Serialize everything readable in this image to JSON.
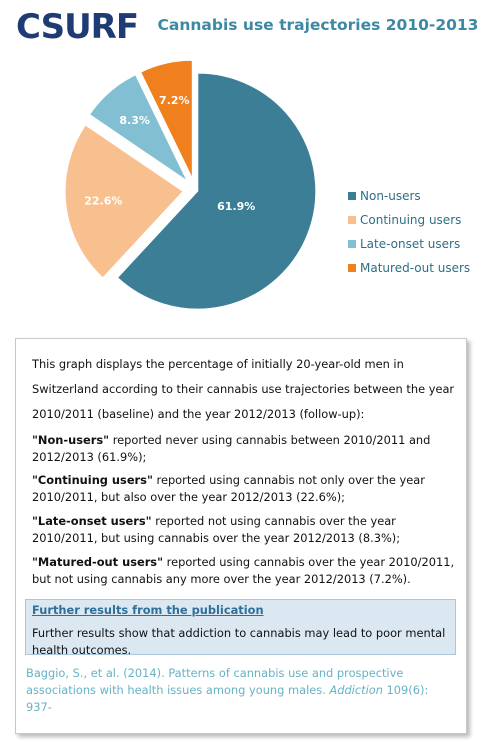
{
  "header": {
    "logo": "CSURF"
  },
  "chart_data": {
    "type": "pie",
    "title": "Cannabis use trajectories 2010-2013",
    "categories": [
      "Non-users",
      "Continuing users",
      "Late-onset users",
      "Matured-out users"
    ],
    "values": [
      61.9,
      22.6,
      8.3,
      7.2
    ],
    "value_labels": [
      "61.9%",
      "22.6%",
      "8.3%",
      "7.2%"
    ],
    "colors": [
      "#3b7e95",
      "#f9c08f",
      "#83bfd3",
      "#f0801e"
    ],
    "legend": "right"
  },
  "text": {
    "intro": "This graph displays the percentage of  initially 20-year-old men in Switzerland according to their cannabis use trajectories between the year 2010/2011 (baseline) and the year 2012/2013 (follow-up):",
    "items": [
      {
        "term": "\"Non-users\"",
        "description": " reported never using cannabis between 2010/2011 and 2012/2013 (61.9%);"
      },
      {
        "term": "\"Continuing users\"",
        "description": " reported using cannabis not only over the year 2010/2011, but also over the year 2012/2013 (22.6%);"
      },
      {
        "term": "\"Late-onset users\"",
        "description": " reported not using cannabis over the year 2010/2011, but using cannabis over the year 2012/2013 (8.3%);"
      },
      {
        "term": "\"Matured-out users\"",
        "description": " reported using cannabis over the year 2010/2011, but not using cannabis any more over the year 2012/2013 (7.2%)."
      }
    ]
  },
  "further": {
    "title": "Further results from the publication",
    "body": "Further results show that addiction to cannabis may lead to poor mental health outcomes."
  },
  "citation": {
    "parts": [
      "Baggio, S., et al. (2014). Patterns of cannabis use and prospective associations with health issues among young males. ",
      "Addiction",
      " 109(6): 937-"
    ]
  }
}
